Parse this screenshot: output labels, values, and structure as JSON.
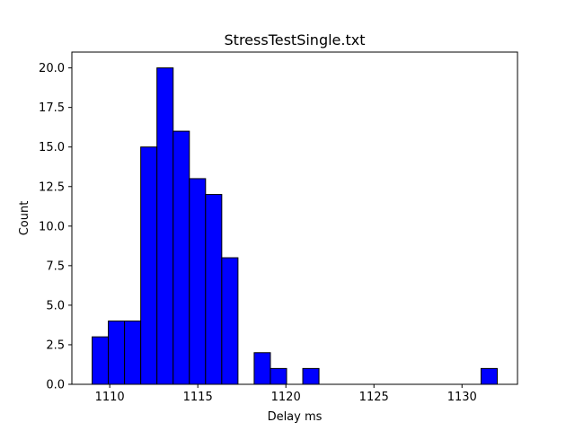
{
  "chart_data": {
    "type": "bar",
    "title": "StressTestSingle.txt",
    "xlabel": "Delay ms",
    "ylabel": "Count",
    "xlim": [
      1107.85,
      1133.15
    ],
    "ylim": [
      0,
      21
    ],
    "bin_width": 0.92,
    "bins": [
      {
        "x0": 1109.0,
        "count": 3
      },
      {
        "x0": 1109.92,
        "count": 4
      },
      {
        "x0": 1110.84,
        "count": 4
      },
      {
        "x0": 1111.76,
        "count": 15
      },
      {
        "x0": 1112.68,
        "count": 20
      },
      {
        "x0": 1113.6,
        "count": 16
      },
      {
        "x0": 1114.52,
        "count": 13
      },
      {
        "x0": 1115.44,
        "count": 12
      },
      {
        "x0": 1116.36,
        "count": 8
      },
      {
        "x0": 1117.28,
        "count": 0
      },
      {
        "x0": 1118.2,
        "count": 2
      },
      {
        "x0": 1119.12,
        "count": 1
      },
      {
        "x0": 1120.04,
        "count": 0
      },
      {
        "x0": 1120.96,
        "count": 1
      },
      {
        "x0": 1121.88,
        "count": 0
      },
      {
        "x0": 1122.8,
        "count": 0
      },
      {
        "x0": 1123.72,
        "count": 0
      },
      {
        "x0": 1124.64,
        "count": 0
      },
      {
        "x0": 1125.56,
        "count": 0
      },
      {
        "x0": 1126.48,
        "count": 0
      },
      {
        "x0": 1127.4,
        "count": 0
      },
      {
        "x0": 1128.32,
        "count": 0
      },
      {
        "x0": 1129.24,
        "count": 0
      },
      {
        "x0": 1130.16,
        "count": 0
      },
      {
        "x0": 1131.08,
        "count": 1
      }
    ],
    "xticks": [
      1110,
      1115,
      1120,
      1125,
      1130
    ],
    "xtick_labels": [
      "1110",
      "1115",
      "1120",
      "1125",
      "1130"
    ],
    "yticks": [
      0,
      2.5,
      5,
      7.5,
      10,
      12.5,
      15,
      17.5,
      20
    ],
    "ytick_labels": [
      "0.0",
      "2.5",
      "5.0",
      "7.5",
      "10.0",
      "12.5",
      "15.0",
      "17.5",
      "20.0"
    ],
    "bar_color": "#0000ff",
    "edge_color": "#000000",
    "grid": false,
    "legend": "none"
  }
}
